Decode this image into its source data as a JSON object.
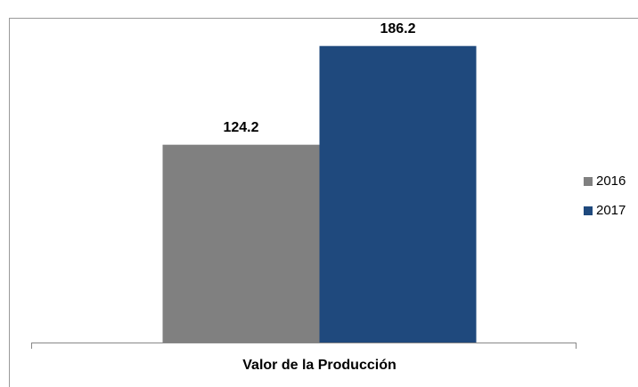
{
  "chart_data": {
    "type": "bar",
    "categories": [
      "Valor de la Producción"
    ],
    "series": [
      {
        "name": "2016",
        "color": "#808080",
        "values": [
          124.2
        ]
      },
      {
        "name": "2017",
        "color": "#1f497d",
        "values": [
          186.2
        ]
      }
    ],
    "ylim": [
      0,
      200
    ],
    "legend": "right"
  }
}
